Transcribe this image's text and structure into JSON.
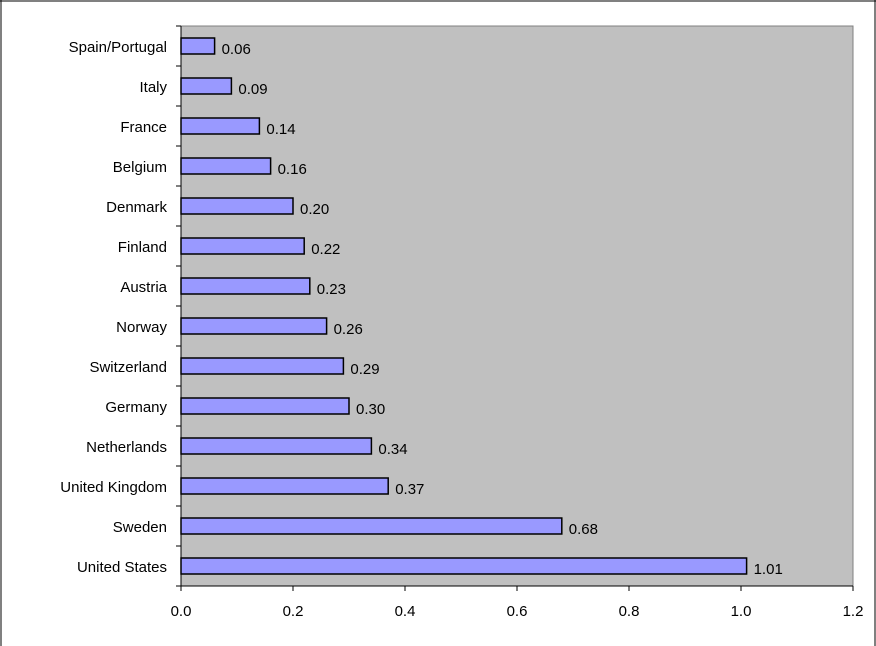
{
  "chart_data": {
    "type": "bar",
    "orientation": "horizontal",
    "title": "",
    "xlabel": "",
    "ylabel": "",
    "categories": [
      "United States",
      "Sweden",
      "United Kingdom",
      "Netherlands",
      "Germany",
      "Switzerland",
      "Norway",
      "Austria",
      "Finland",
      "Denmark",
      "Belgium",
      "France",
      "Italy",
      "Spain/Portugal"
    ],
    "values": [
      1.01,
      0.68,
      0.37,
      0.34,
      0.3,
      0.29,
      0.26,
      0.23,
      0.22,
      0.2,
      0.16,
      0.14,
      0.09,
      0.06
    ],
    "value_labels": [
      "1.01",
      "0.68",
      "0.37",
      "0.34",
      "0.30",
      "0.29",
      "0.26",
      "0.23",
      "0.22",
      "0.20",
      "0.16",
      "0.14",
      "0.09",
      "0.06"
    ],
    "xlim": [
      0,
      1.2
    ],
    "x_ticks": [
      "0.0",
      "0.2",
      "0.4",
      "0.6",
      "0.8",
      "1.0",
      "1.2"
    ],
    "x_tick_values": [
      0,
      0.2,
      0.4,
      0.6,
      0.8,
      1.0,
      1.2
    ],
    "grid": false,
    "legend": "none",
    "colors": {
      "plot_background": "#c0c0c0",
      "bar_fill": "#9999ff",
      "bar_stroke": "#000000",
      "frame": "#000000"
    }
  }
}
